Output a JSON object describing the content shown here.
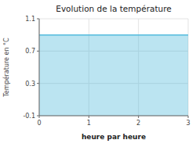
{
  "chart_data": {
    "type": "area",
    "title": "Evolution de la température",
    "xlabel": "heure par heure",
    "ylabel": "Température en °C",
    "x": [
      0,
      3
    ],
    "values": [
      0.9,
      0.9
    ],
    "color": "#55bbdd",
    "xlim": [
      0,
      3
    ],
    "ylim": [
      -0.1,
      1.1
    ],
    "xticks": [
      0,
      1,
      2,
      3
    ],
    "yticks": [
      -0.1,
      0.3,
      0.7,
      1.1
    ],
    "grid": true
  }
}
